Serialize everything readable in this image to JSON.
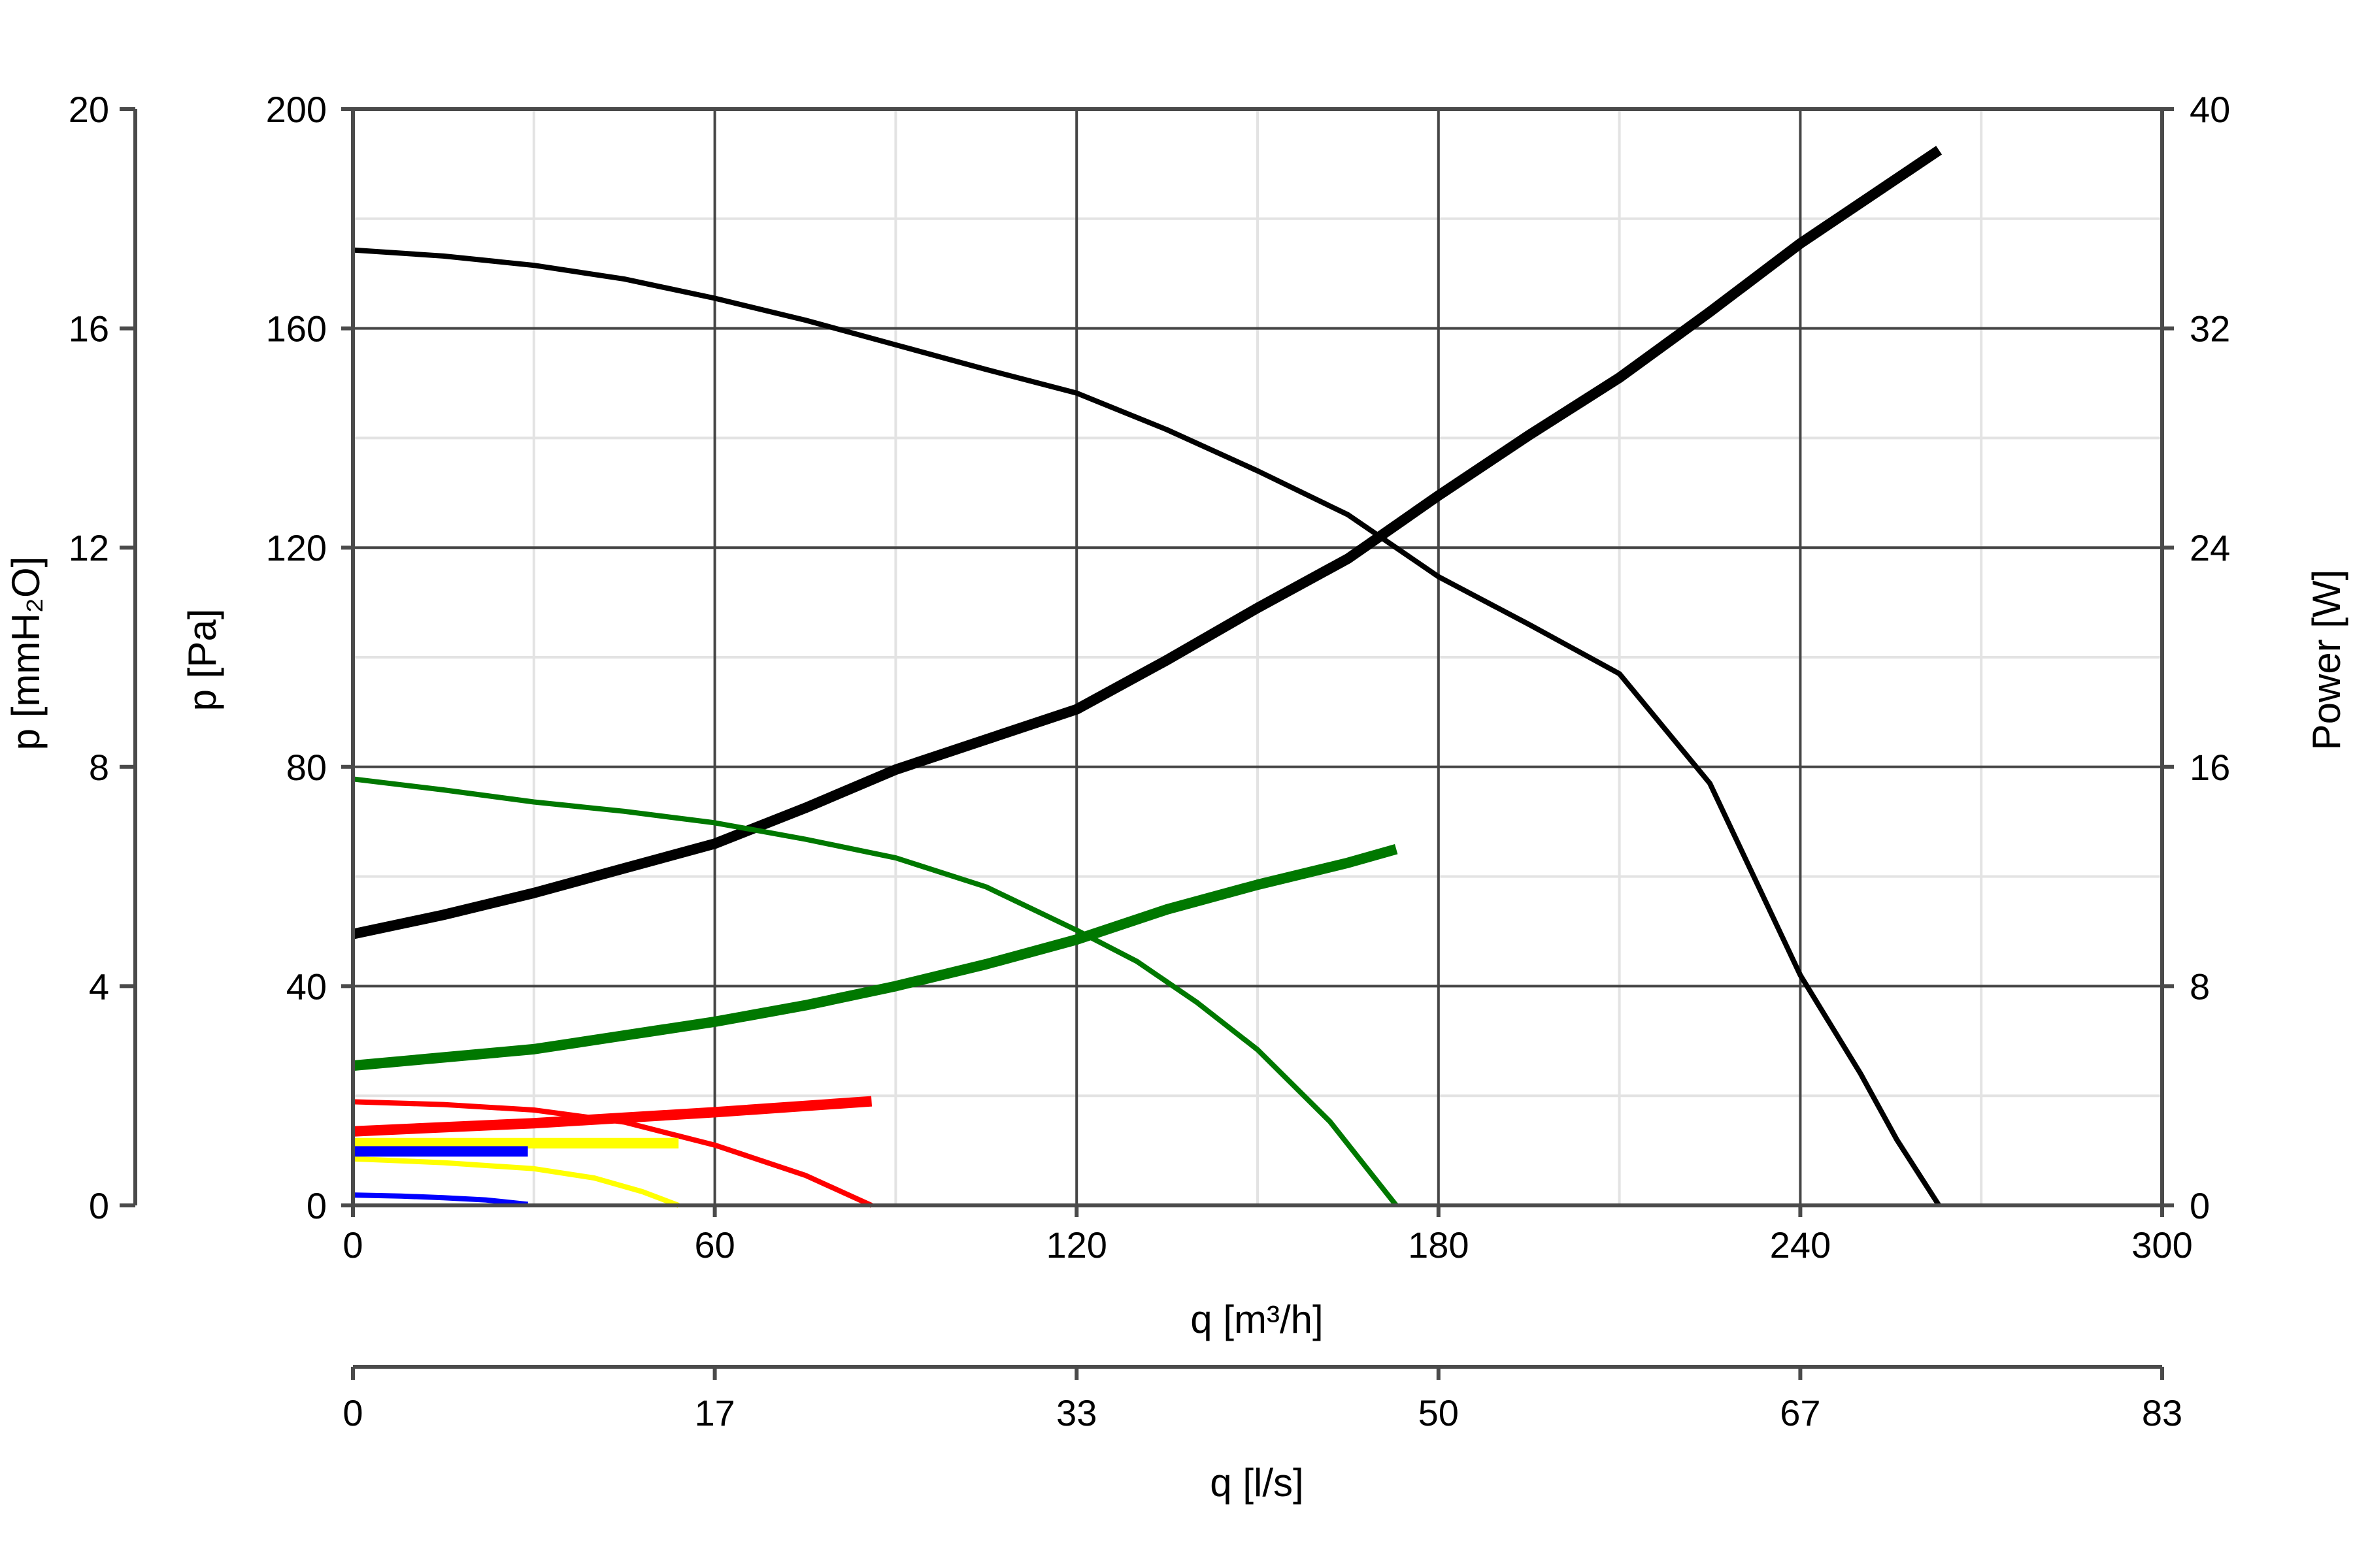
{
  "chart_data": {
    "type": "line",
    "title": "",
    "xlabel": "q [m³/h]",
    "xlabel_secondary": "q [l/s]",
    "ylabel": "p [Pa]",
    "ylabel_secondary_left": "p [mmH₂O]",
    "ylabel_right": "Power [W]",
    "xlim": [
      0,
      300
    ],
    "ylim": [
      0,
      200
    ],
    "ylim_mmH2O": [
      0,
      20
    ],
    "ylim_power": [
      0,
      40
    ],
    "grid": true,
    "legend": null,
    "x_ticks": [
      "0",
      "60",
      "120",
      "180",
      "240",
      "300"
    ],
    "x_ticks_ls": [
      "0",
      "17",
      "33",
      "50",
      "67",
      "83"
    ],
    "y_ticks_pa": [
      "0",
      "40",
      "80",
      "120",
      "160",
      "200"
    ],
    "y_ticks_mmH2O": [
      "0",
      "4",
      "8",
      "12",
      "16",
      "20"
    ],
    "y_ticks_power": [
      "0",
      "8",
      "16",
      "24",
      "32",
      "40"
    ],
    "series": [
      {
        "name": "Pressure (black)",
        "axis": "pressure",
        "color": "#000000",
        "width": 8,
        "x": [
          0,
          15,
          30,
          45,
          60,
          75,
          90,
          105,
          120,
          135,
          150,
          165,
          180,
          195,
          210,
          225,
          240,
          250,
          256,
          263
        ],
        "y": [
          174.3,
          173.2,
          171.5,
          169,
          165.5,
          161.5,
          157,
          152.5,
          148.2,
          141.5,
          134,
          126,
          114.7,
          106,
          97,
          77,
          42,
          24,
          12,
          0
        ]
      },
      {
        "name": "Power (black)",
        "axis": "power",
        "color": "#000000",
        "width": 16,
        "x": [
          0,
          15,
          30,
          45,
          60,
          75,
          90,
          105,
          120,
          135,
          150,
          165,
          180,
          195,
          210,
          225,
          240,
          263
        ],
        "y": [
          9.9,
          10.6,
          11.4,
          12.3,
          13.2,
          14.5,
          15.9,
          17.0,
          18.1,
          19.9,
          21.8,
          23.6,
          25.9,
          28.1,
          30.2,
          32.6,
          35.1,
          38.5
        ]
      },
      {
        "name": "Pressure (green)",
        "axis": "pressure",
        "color": "#007800",
        "width": 8,
        "x": [
          0,
          15,
          30,
          45,
          60,
          75,
          90,
          105,
          120,
          130,
          140,
          150,
          162,
          173
        ],
        "y": [
          77.8,
          75.8,
          73.6,
          71.9,
          69.8,
          66.8,
          63.4,
          58.1,
          50.2,
          44.5,
          37.0,
          28.4,
          15.3,
          0
        ]
      },
      {
        "name": "Power (green)",
        "axis": "power",
        "color": "#007800",
        "width": 16,
        "x": [
          0,
          15,
          30,
          45,
          60,
          75,
          90,
          105,
          120,
          135,
          150,
          165,
          173
        ],
        "y": [
          5.1,
          5.4,
          5.7,
          6.2,
          6.7,
          7.3,
          8.0,
          8.8,
          9.7,
          10.8,
          11.7,
          12.5,
          13.0
        ]
      },
      {
        "name": "Pressure (red)",
        "axis": "pressure",
        "color": "#ff0000",
        "width": 8,
        "x": [
          0,
          15,
          30,
          45,
          60,
          75,
          86
        ],
        "y": [
          18.9,
          18.4,
          17.4,
          15.2,
          11.0,
          5.5,
          0
        ]
      },
      {
        "name": "Power (red)",
        "axis": "power",
        "color": "#ff0000",
        "width": 16,
        "x": [
          0,
          30,
          60,
          86
        ],
        "y": [
          2.7,
          3.0,
          3.4,
          3.8
        ]
      },
      {
        "name": "Pressure (yellow)",
        "axis": "pressure",
        "color": "#ffff00",
        "width": 8,
        "x": [
          0,
          15,
          30,
          40,
          48,
          54
        ],
        "y": [
          8.5,
          7.8,
          6.7,
          5.0,
          2.5,
          0
        ]
      },
      {
        "name": "Power (yellow)",
        "axis": "power",
        "color": "#ffff00",
        "width": 16,
        "x": [
          0,
          54
        ],
        "y": [
          2.27,
          2.27
        ]
      },
      {
        "name": "Pressure (blue)",
        "axis": "pressure",
        "color": "#0000ff",
        "width": 8,
        "x": [
          0,
          8,
          15,
          22,
          29
        ],
        "y": [
          1.9,
          1.7,
          1.4,
          1.0,
          0.2
        ]
      },
      {
        "name": "Power (blue)",
        "axis": "power",
        "color": "#0000ff",
        "width": 16,
        "x": [
          0,
          29
        ],
        "y": [
          1.97,
          1.97
        ]
      }
    ]
  }
}
